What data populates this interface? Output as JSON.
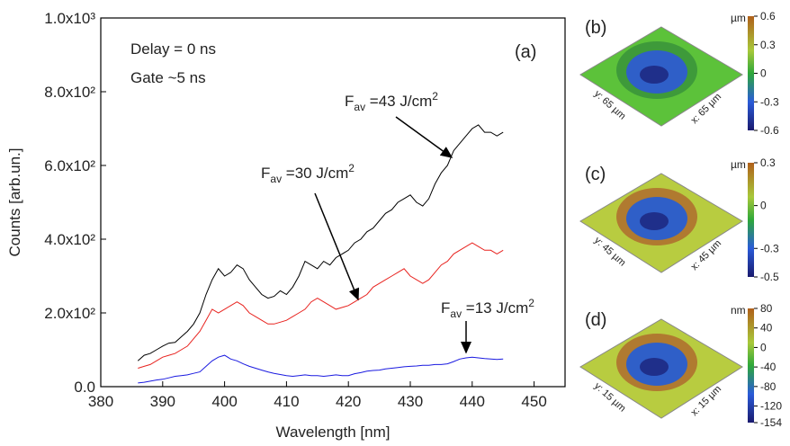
{
  "chart_data": {
    "type": "line",
    "xlabel": "Wavelength [nm]",
    "ylabel": "Counts [arb.un.]",
    "texts": [
      "Delay = 0 ns",
      "Gate ~5 ns"
    ],
    "panel_label": "(a)",
    "xlim": [
      380,
      455
    ],
    "xticks": [
      380,
      390,
      400,
      410,
      420,
      430,
      440,
      450
    ],
    "ylim": [
      0,
      1000
    ],
    "yticks": [
      {
        "value": 0,
        "label": "0.0"
      },
      {
        "value": 200,
        "label": "2.0x10²"
      },
      {
        "value": 400,
        "label": "4.0x10²"
      },
      {
        "value": 600,
        "label": "6.0x10²"
      },
      {
        "value": 800,
        "label": "8.0x10²"
      },
      {
        "value": 1000,
        "label": "1.0x10³"
      }
    ],
    "x": [
      386,
      387,
      388,
      389,
      390,
      391,
      392,
      393,
      394,
      395,
      396,
      397,
      398,
      399,
      400,
      401,
      402,
      403,
      404,
      405,
      406,
      407,
      408,
      409,
      410,
      411,
      412,
      413,
      414,
      415,
      416,
      417,
      418,
      419,
      420,
      421,
      422,
      423,
      424,
      425,
      426,
      427,
      428,
      429,
      430,
      431,
      432,
      433,
      434,
      435,
      436,
      437,
      438,
      439,
      440,
      441,
      442,
      443,
      444,
      445
    ],
    "series": [
      {
        "name": "43",
        "color": "#000000",
        "annotation": [
          "F",
          "av",
          " =43 J/cm",
          "2"
        ],
        "values": [
          70,
          85,
          90,
          100,
          110,
          118,
          120,
          135,
          150,
          170,
          200,
          250,
          290,
          320,
          300,
          310,
          330,
          320,
          290,
          270,
          250,
          240,
          245,
          260,
          250,
          270,
          300,
          340,
          330,
          320,
          340,
          330,
          350,
          360,
          370,
          390,
          400,
          420,
          430,
          450,
          470,
          480,
          500,
          510,
          520,
          500,
          490,
          510,
          550,
          580,
          600,
          640,
          660,
          680,
          700,
          710,
          690,
          690,
          680,
          690
        ]
      },
      {
        "name": "30",
        "color": "#e8231f",
        "annotation": [
          "F",
          "av",
          " =30 J/cm",
          "2"
        ],
        "values": [
          50,
          55,
          60,
          70,
          80,
          85,
          90,
          100,
          110,
          130,
          150,
          180,
          210,
          200,
          210,
          220,
          230,
          220,
          200,
          190,
          180,
          170,
          170,
          175,
          180,
          190,
          200,
          210,
          230,
          240,
          230,
          220,
          210,
          215,
          220,
          230,
          240,
          250,
          270,
          280,
          290,
          300,
          310,
          320,
          300,
          290,
          280,
          290,
          310,
          330,
          340,
          360,
          370,
          380,
          390,
          380,
          370,
          370,
          360,
          370
        ]
      },
      {
        "name": "13",
        "color": "#1a1ae0",
        "annotation": [
          "F",
          "av",
          " =13 J/cm",
          "2"
        ],
        "values": [
          10,
          12,
          15,
          18,
          20,
          24,
          28,
          30,
          32,
          36,
          40,
          55,
          70,
          80,
          85,
          75,
          70,
          62,
          55,
          50,
          45,
          40,
          36,
          33,
          30,
          28,
          30,
          32,
          30,
          30,
          28,
          30,
          32,
          30,
          30,
          35,
          38,
          42,
          44,
          45,
          48,
          50,
          52,
          54,
          55,
          56,
          58,
          58,
          60,
          60,
          62,
          68,
          75,
          78,
          80,
          78,
          76,
          75,
          74,
          75
        ]
      }
    ]
  },
  "colorbar_panels": [
    {
      "label": "(b)",
      "unit": "µm",
      "lim": [
        -0.6,
        0.6
      ],
      "ticks": [
        0.6,
        0.3,
        0,
        -0.3,
        -0.6
      ],
      "ylabel": "y: 65 µm",
      "xlabel": "x: 65 µm"
    },
    {
      "label": "(c)",
      "unit": "µm",
      "lim": [
        -0.5,
        0.3
      ],
      "ticks": [
        0.3,
        0,
        -0.3,
        -0.5
      ],
      "ylabel": "y: 45 µm",
      "xlabel": "x: 45 µm"
    },
    {
      "label": "(d)",
      "unit": "nm",
      "lim": [
        -154,
        80
      ],
      "ticks": [
        80,
        40,
        0,
        -40,
        -80,
        -120,
        -154
      ],
      "ylabel": "y: 15 µm",
      "xlabel": "x: 15 µm"
    }
  ]
}
